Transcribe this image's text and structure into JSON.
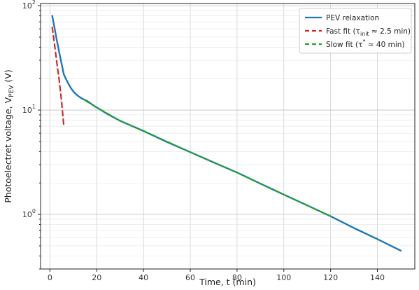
{
  "chart_data": {
    "type": "line",
    "title": "",
    "xlabel": "Time, t (min)",
    "ylabel": {
      "main": "Photoelectret voltage, V",
      "sub": "PEV",
      "unit": " (V)"
    },
    "xscale": "linear",
    "yscale": "log",
    "xlim": [
      -4,
      156
    ],
    "ylim": [
      0.3,
      105
    ],
    "x_ticks": [
      0,
      20,
      40,
      60,
      80,
      100,
      120,
      140
    ],
    "y_ticks": [
      {
        "base": "10",
        "exp": "0",
        "value": 1
      },
      {
        "base": "10",
        "exp": "1",
        "value": 10
      },
      {
        "base": "10",
        "exp": "2",
        "value": 100
      }
    ],
    "grid": true,
    "legend_position": "top-right",
    "series": [
      {
        "name": "PEV relaxation",
        "color": "#1f77b4",
        "style": "solid",
        "x": [
          1,
          2,
          3,
          4,
          5,
          6,
          7,
          8,
          9,
          10,
          11,
          12,
          13,
          14,
          15,
          16,
          18,
          20,
          25,
          30,
          40,
          50,
          60,
          70,
          80,
          90,
          100,
          110,
          120,
          130,
          140,
          150
        ],
        "y": [
          80,
          60.5,
          46.1,
          35.4,
          27.6,
          21.8,
          19.6,
          17.7,
          16.2,
          15.1,
          14.3,
          13.7,
          13.2,
          12.8,
          12.5,
          12.2,
          11.3,
          10.6,
          9.05,
          7.88,
          6.3,
          4.95,
          3.95,
          3.15,
          2.52,
          1.97,
          1.55,
          1.22,
          0.96,
          0.74,
          0.58,
          0.45
        ]
      },
      {
        "name": "Fast fit",
        "tau_label": "init",
        "tau_value": " ≈ 2.5 min)",
        "color": "#d62728",
        "style": "dashed",
        "x": [
          1,
          2,
          3,
          4,
          5,
          6
        ],
        "y": [
          62,
          42,
          28,
          19,
          12,
          6.8
        ]
      },
      {
        "name": "Slow fit",
        "tau_label": "*",
        "tau_value": " ≈ 40 min)",
        "color": "#2ca02c",
        "style": "dashed",
        "x": [
          15,
          20,
          30,
          40,
          60,
          80,
          100,
          120
        ],
        "y": [
          12.4,
          10.6,
          7.9,
          6.3,
          3.95,
          2.52,
          1.55,
          0.96
        ]
      }
    ]
  }
}
